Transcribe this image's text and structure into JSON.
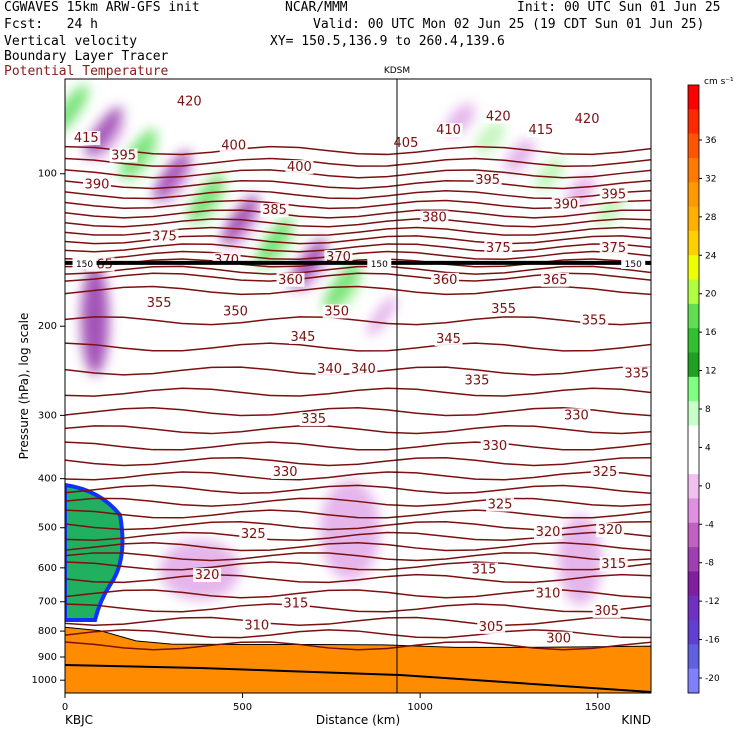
{
  "header": {
    "model": "CGWAVES 15km ARW-GFS init",
    "fcst": "Fcst:   24 h",
    "field1": "Vertical velocity",
    "field2": "Boundary Layer Tracer",
    "field3": "Potential Temperature",
    "org": "NCAR/MMM",
    "init": "Init: 00 UTC Sun 01 Jun 25",
    "valid": "Valid: 00 UTC Mon 02 Jun 25 (19 CDT Sun 01 Jun 25)",
    "xy": "XY= 150.5,136.9 to 260.4,139.6"
  },
  "colors": {
    "theta": "#7a1010",
    "terrain": "#ff8c00",
    "tracer": "#1030ff"
  },
  "chart_data": {
    "type": "heatmap",
    "title": "Vertical velocity / Boundary Layer Tracer / Potential Temperature",
    "xlabel": "Distance (km)",
    "ylabel": "Pressure (hPa), log scale",
    "xlim": [
      0,
      1650
    ],
    "ylim": [
      1000,
      10
    ],
    "y_scale": "log",
    "x_ticks": [
      "0",
      "500",
      "1000",
      "1500"
    ],
    "y_ticks": [
      "100",
      "200",
      "300",
      "400",
      "500",
      "600",
      "700",
      "800",
      "900",
      "1000"
    ],
    "endpoints": {
      "left": "KBJC",
      "right": "KIND",
      "marker": "KDSM",
      "marker_km": 935
    },
    "tropopause_label": "150",
    "tropopause_hPa": 150,
    "colorbar": {
      "unit": "cm s⁻¹",
      "labels": [
        "36",
        "32",
        "28",
        "24",
        "20",
        "16",
        "12",
        "8",
        "4",
        "0",
        "-4",
        "-8",
        "-12",
        "-16",
        "-20"
      ],
      "colors": [
        "#ff0000",
        "#ff2a00",
        "#ff5500",
        "#ff7a00",
        "#ff9900",
        "#ffb000",
        "#ffd000",
        "#f0ff00",
        "#b0ff40",
        "#60e050",
        "#30c030",
        "#20a020",
        "#80ff80",
        "#c8ffc8",
        "#ffffff",
        "#ffffff",
        "#f0c0f0",
        "#e090e0",
        "#c060c0",
        "#a040b0",
        "#8020a0",
        "#7030c0",
        "#6040d0",
        "#6060e0",
        "#8080ff"
      ]
    },
    "theta_labels": [
      {
        "v": "420",
        "x": 350,
        "p": 72
      },
      {
        "v": "415",
        "x": 60,
        "p": 85
      },
      {
        "v": "395",
        "x": 165,
        "p": 92
      },
      {
        "v": "400",
        "x": 475,
        "p": 88
      },
      {
        "v": "390",
        "x": 90,
        "p": 105
      },
      {
        "v": "400",
        "x": 660,
        "p": 97
      },
      {
        "v": "405",
        "x": 960,
        "p": 87
      },
      {
        "v": "410",
        "x": 1080,
        "p": 82
      },
      {
        "v": "420",
        "x": 1220,
        "p": 77
      },
      {
        "v": "415",
        "x": 1340,
        "p": 82
      },
      {
        "v": "420",
        "x": 1470,
        "p": 78
      },
      {
        "v": "385",
        "x": 590,
        "p": 118
      },
      {
        "v": "395",
        "x": 1190,
        "p": 103
      },
      {
        "v": "390",
        "x": 1410,
        "p": 115
      },
      {
        "v": "395",
        "x": 1545,
        "p": 110
      },
      {
        "v": "375",
        "x": 280,
        "p": 133
      },
      {
        "v": "380",
        "x": 1040,
        "p": 122
      },
      {
        "v": "370",
        "x": 455,
        "p": 148
      },
      {
        "v": "370",
        "x": 770,
        "p": 146
      },
      {
        "v": "375",
        "x": 1220,
        "p": 140
      },
      {
        "v": "375",
        "x": 1545,
        "p": 140
      },
      {
        "v": "365",
        "x": 100,
        "p": 151
      },
      {
        "v": "360",
        "x": 635,
        "p": 162
      },
      {
        "v": "360",
        "x": 1070,
        "p": 162
      },
      {
        "v": "365",
        "x": 1380,
        "p": 162
      },
      {
        "v": "355",
        "x": 265,
        "p": 180
      },
      {
        "v": "350",
        "x": 480,
        "p": 187
      },
      {
        "v": "350",
        "x": 765,
        "p": 187
      },
      {
        "v": "355",
        "x": 1235,
        "p": 185
      },
      {
        "v": "355",
        "x": 1490,
        "p": 195
      },
      {
        "v": "345",
        "x": 670,
        "p": 210
      },
      {
        "v": "345",
        "x": 1080,
        "p": 212
      },
      {
        "v": "340",
        "x": 745,
        "p": 243
      },
      {
        "v": "340",
        "x": 840,
        "p": 243
      },
      {
        "v": "335",
        "x": 1160,
        "p": 256
      },
      {
        "v": "335",
        "x": 1610,
        "p": 248
      },
      {
        "v": "335",
        "x": 700,
        "p": 305
      },
      {
        "v": "330",
        "x": 1440,
        "p": 300
      },
      {
        "v": "330",
        "x": 1210,
        "p": 345
      },
      {
        "v": "330",
        "x": 620,
        "p": 388
      },
      {
        "v": "325",
        "x": 1520,
        "p": 388
      },
      {
        "v": "325",
        "x": 1225,
        "p": 450
      },
      {
        "v": "320",
        "x": 1360,
        "p": 510
      },
      {
        "v": "320",
        "x": 1535,
        "p": 505
      },
      {
        "v": "325",
        "x": 530,
        "p": 515
      },
      {
        "v": "315",
        "x": 1180,
        "p": 605
      },
      {
        "v": "315",
        "x": 1545,
        "p": 590
      },
      {
        "v": "320",
        "x": 400,
        "p": 620
      },
      {
        "v": "310",
        "x": 1360,
        "p": 675
      },
      {
        "v": "315",
        "x": 650,
        "p": 705
      },
      {
        "v": "305",
        "x": 1525,
        "p": 730
      },
      {
        "v": "305",
        "x": 1200,
        "p": 785
      },
      {
        "v": "310",
        "x": 540,
        "p": 780
      },
      {
        "v": "300",
        "x": 1390,
        "p": 828
      }
    ]
  }
}
